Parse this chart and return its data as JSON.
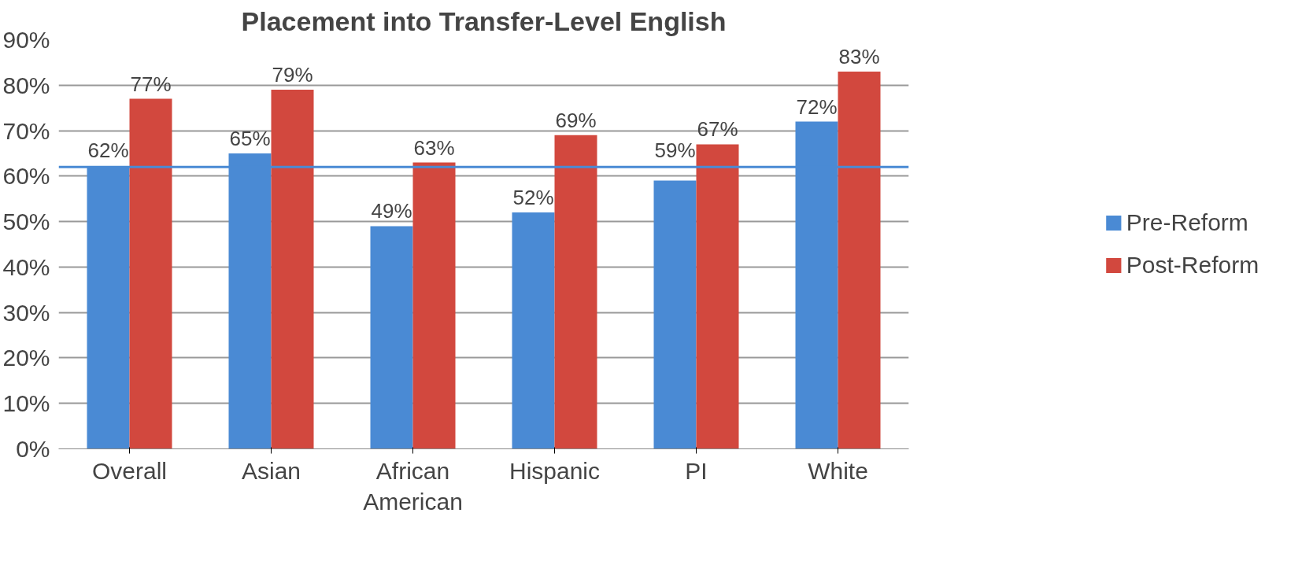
{
  "chart_data": {
    "type": "bar",
    "title": "Placement into Transfer-Level English",
    "categories": [
      "Overall",
      "Asian",
      "African American",
      "Hispanic",
      "PI",
      "White"
    ],
    "series": [
      {
        "name": "Pre-Reform",
        "color": "#4a8ad4",
        "values": [
          62,
          65,
          49,
          52,
          59,
          72
        ],
        "value_labels": [
          "62%",
          "65%",
          "49%",
          "52%",
          "59%",
          "72%"
        ]
      },
      {
        "name": "Post-Reform",
        "color": "#d2483e",
        "values": [
          77,
          79,
          63,
          69,
          67,
          83
        ],
        "value_labels": [
          "77%",
          "79%",
          "63%",
          "69%",
          "67%",
          "83%"
        ]
      }
    ],
    "ylim": [
      0,
      90
    ],
    "yticks": [
      {
        "value": 0,
        "label": "0%"
      },
      {
        "value": 10,
        "label": "10%"
      },
      {
        "value": 20,
        "label": "20%"
      },
      {
        "value": 30,
        "label": "30%"
      },
      {
        "value": 40,
        "label": "40%"
      },
      {
        "value": 50,
        "label": "50%"
      },
      {
        "value": 60,
        "label": "60%"
      },
      {
        "value": 70,
        "label": "70%"
      },
      {
        "value": 80,
        "label": "80%"
      },
      {
        "value": 90,
        "label": "90%"
      }
    ],
    "ref_lines": [
      {
        "axis": "y",
        "value": 62,
        "color": "#4a8ad4"
      }
    ],
    "grid": "y",
    "legend": "right"
  }
}
